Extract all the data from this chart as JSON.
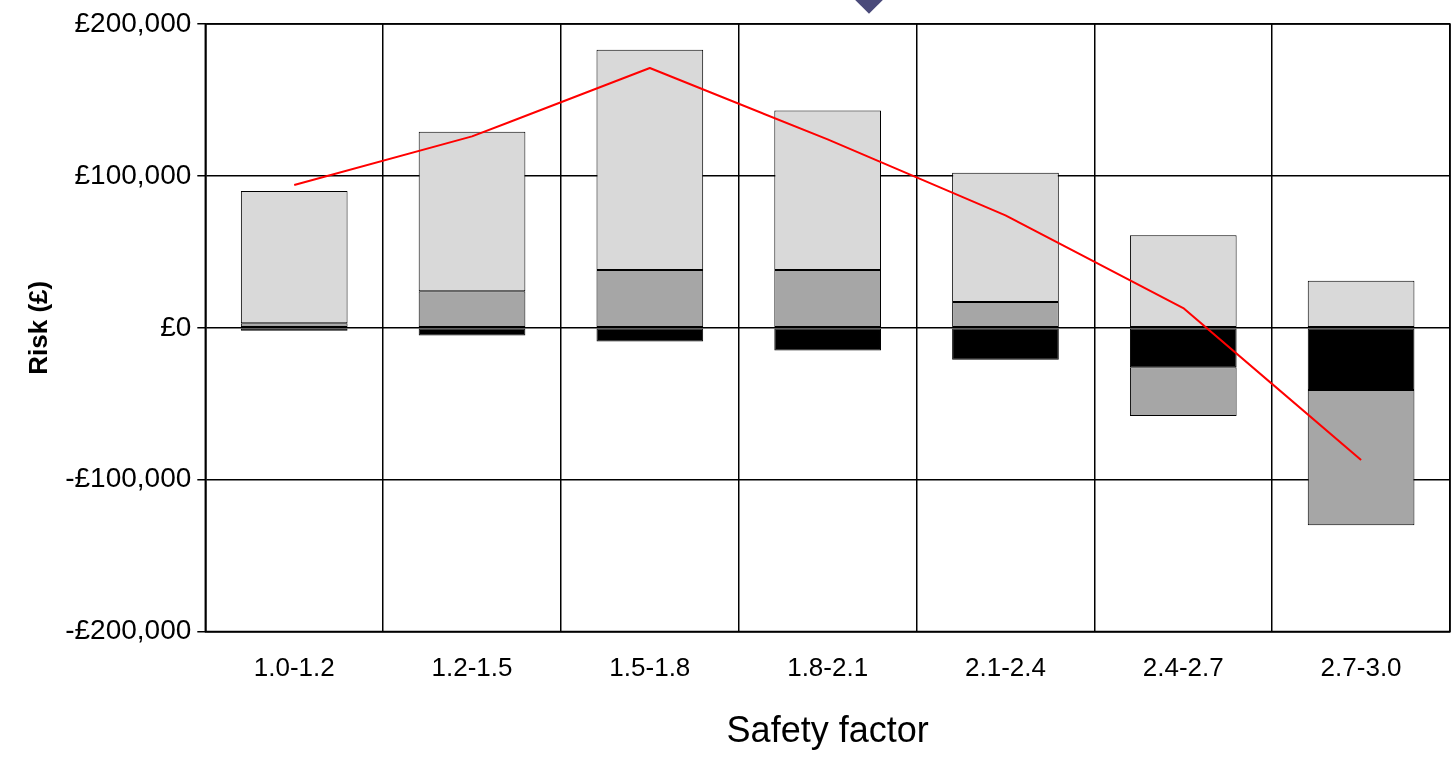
{
  "chart_data": {
    "type": "bar",
    "stacked": true,
    "xlabel": "Safety factor",
    "ylabel": "Risk (£)",
    "categories": [
      "1.0-1.2",
      "1.2-1.5",
      "1.5-1.8",
      "1.8-2.1",
      "2.1-2.4",
      "2.4-2.7",
      "2.7-3.0"
    ],
    "series": [
      {
        "color": "#000000",
        "values": [
          -2000,
          -5000,
          -9000,
          -15000,
          -21000,
          -26000,
          -41000
        ]
      },
      {
        "color": "#a6a6a6",
        "values": [
          3000,
          24000,
          38000,
          38000,
          17000,
          -32000,
          -89000
        ]
      },
      {
        "color": "#d9d9d9",
        "values": [
          87000,
          105000,
          145000,
          105000,
          85000,
          61000,
          31000
        ]
      },
      {
        "type": "line",
        "color": "#ff0000",
        "values": [
          94000,
          126000,
          171000,
          124000,
          74000,
          13000,
          -87000
        ]
      }
    ],
    "ylim": [
      -200000,
      200000
    ],
    "yticks": [
      {
        "value": -200000,
        "label": "-£200,000"
      },
      {
        "value": -100000,
        "label": "-£100,000"
      },
      {
        "value": 0,
        "label": "£0"
      },
      {
        "value": 100000,
        "label": "£100,000"
      },
      {
        "value": 200000,
        "label": "£200,000"
      }
    ],
    "grid": true,
    "legend": false,
    "marker": "none",
    "line_style": "solid"
  }
}
